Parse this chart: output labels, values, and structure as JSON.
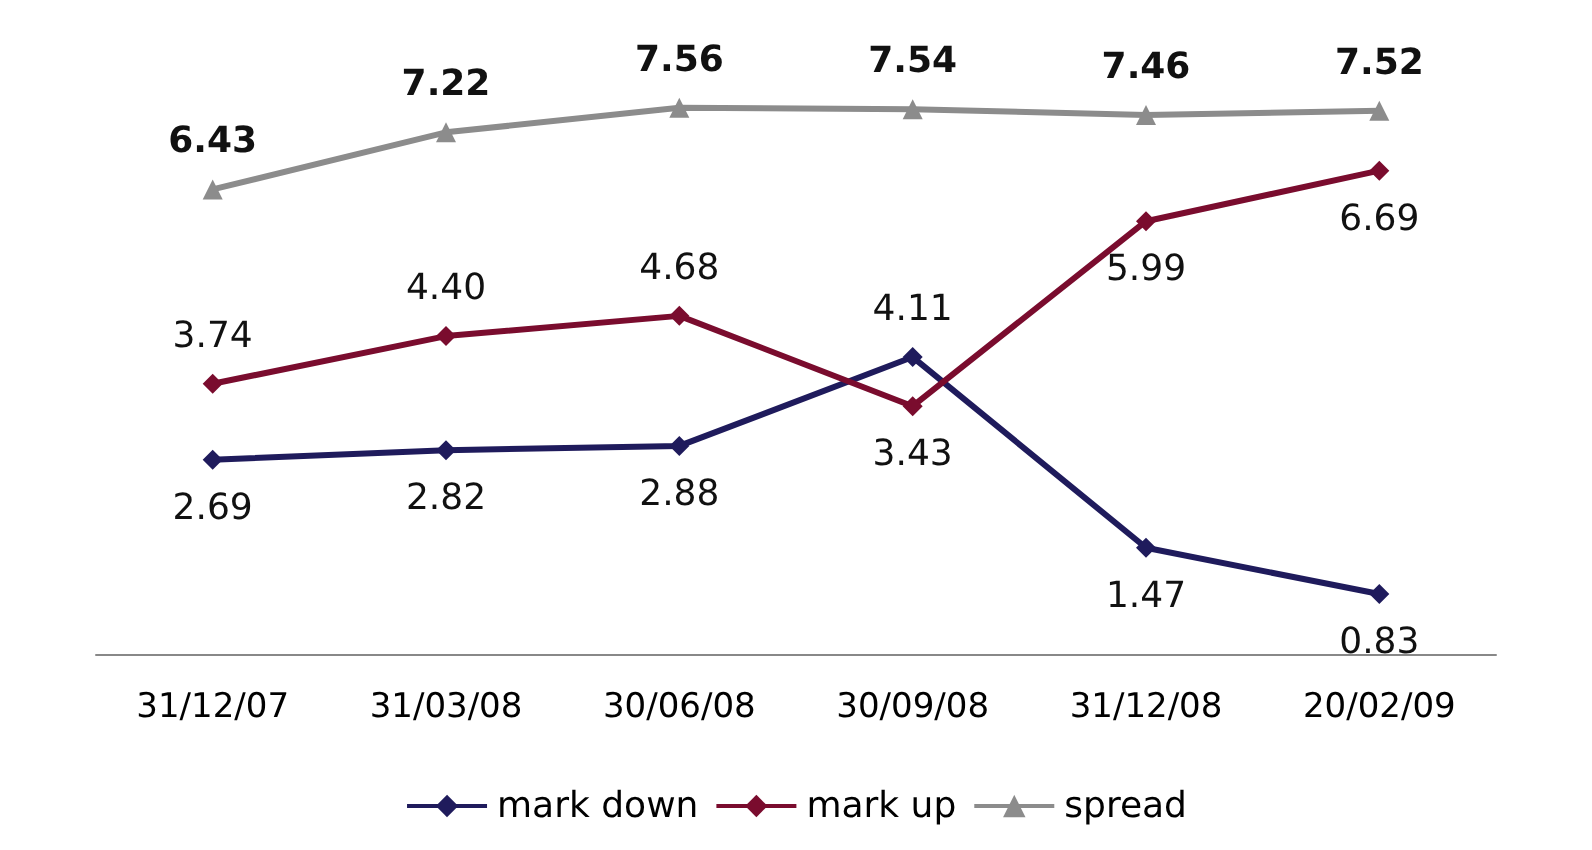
{
  "chart_data": {
    "type": "line",
    "categories": [
      "31/12/07",
      "31/03/08",
      "30/06/08",
      "30/09/08",
      "31/12/08",
      "20/02/09"
    ],
    "series": [
      {
        "name": "mark down",
        "color": "#1f1b5c",
        "marker": "diamond",
        "values": [
          2.69,
          2.82,
          2.88,
          4.11,
          1.47,
          0.83
        ],
        "value_labels": [
          "2.69",
          "2.82",
          "2.88",
          "4.11",
          "1.47",
          "0.83"
        ]
      },
      {
        "name": "mark up",
        "color": "#7a0c2e",
        "marker": "diamond",
        "values": [
          3.74,
          4.4,
          4.68,
          3.43,
          5.99,
          6.69
        ],
        "value_labels": [
          "3.74",
          "4.40",
          "4.68",
          "3.43",
          "5.99",
          "6.69"
        ]
      },
      {
        "name": "spread",
        "color": "#8c8c8c",
        "marker": "triangle",
        "values": [
          6.43,
          7.22,
          7.56,
          7.54,
          7.46,
          7.52
        ],
        "value_labels": [
          "6.43",
          "7.22",
          "7.56",
          "7.54",
          "7.46",
          "7.52"
        ]
      }
    ],
    "legend": "bottom"
  }
}
